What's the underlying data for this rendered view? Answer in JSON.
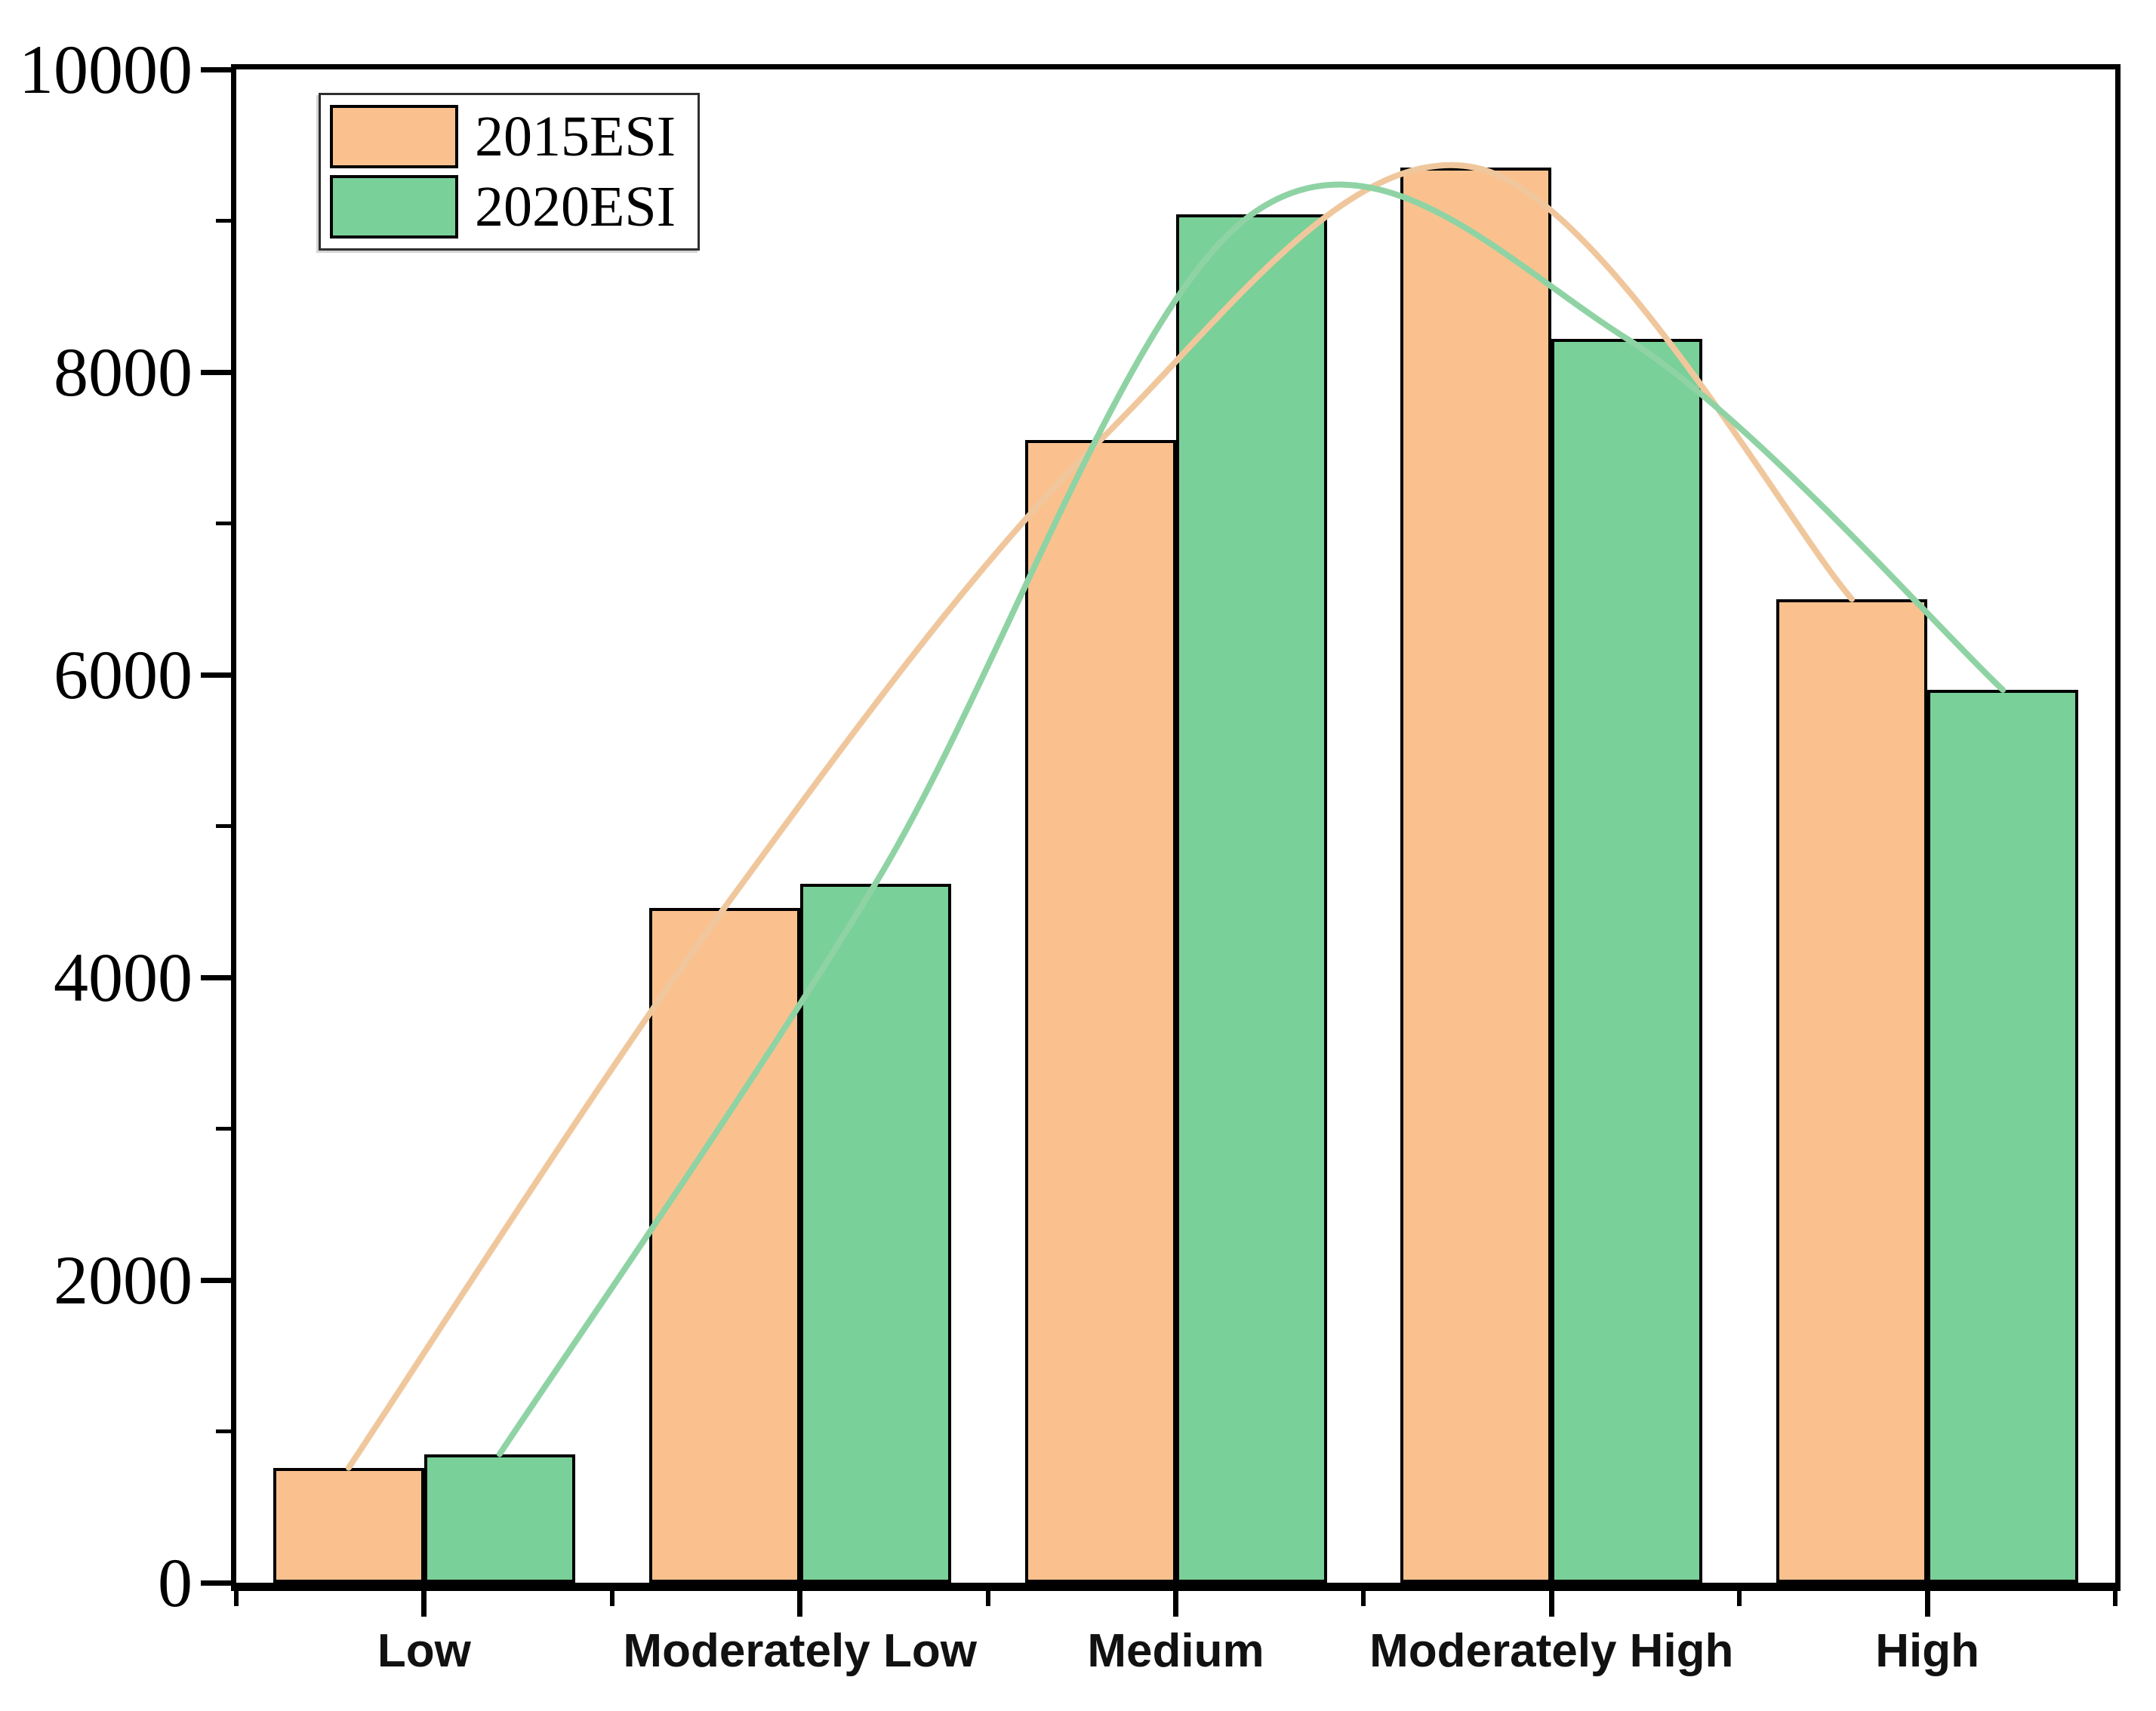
{
  "chart_data": {
    "type": "bar",
    "title": "",
    "xlabel": "",
    "ylabel": "",
    "categories": [
      "Low",
      "Moderately Low",
      "Medium",
      "Moderately High",
      "High"
    ],
    "series": [
      {
        "name": "2015ESI",
        "values": [
          760,
          4460,
          7550,
          9350,
          6500
        ],
        "bar_color": "#FAC18E",
        "line_color": "#F0C79D"
      },
      {
        "name": "2020ESI",
        "values": [
          850,
          4620,
          9040,
          8220,
          5900
        ],
        "bar_color": "#79D099",
        "line_color": "#8FD3A4"
      }
    ],
    "ylim": [
      0,
      10000
    ],
    "yticks_major": [
      0,
      2000,
      4000,
      6000,
      8000,
      10000
    ],
    "ytick_labels": [
      "0",
      "2000",
      "4000",
      "6000",
      "8000",
      "10000"
    ],
    "ytick_minor_step": 1000,
    "bar_edge_color": "#000000",
    "trend_lines": "smooth spline through bar tops, one per series",
    "legend_position": "top-left",
    "grid": false,
    "background": "#ffffff"
  },
  "legend": {
    "items": [
      {
        "label": "2015ESI"
      },
      {
        "label": "2020ESI"
      }
    ]
  }
}
